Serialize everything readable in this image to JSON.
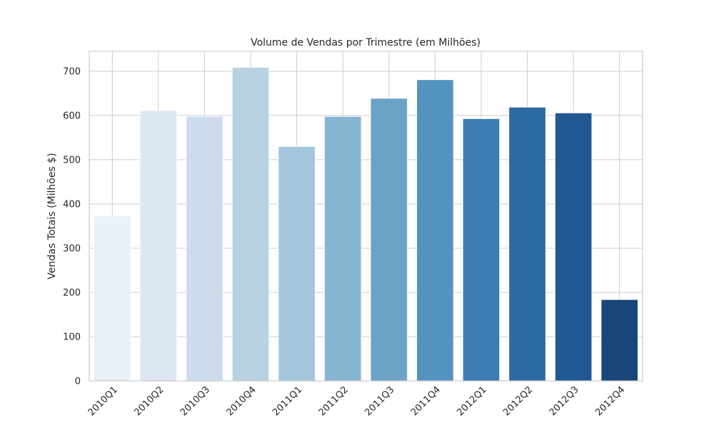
{
  "chart_data": {
    "type": "bar",
    "title": "Volume de Vendas por Trimestre (em Milhões)",
    "xlabel": "",
    "ylabel": "Vendas Totais (Milhões $)",
    "categories": [
      "2010Q1",
      "2010Q2",
      "2010Q3",
      "2010Q4",
      "2011Q1",
      "2011Q2",
      "2011Q3",
      "2011Q4",
      "2012Q1",
      "2012Q2",
      "2012Q3",
      "2012Q4"
    ],
    "values": [
      373,
      611,
      598,
      709,
      530,
      598,
      639,
      681,
      593,
      619,
      606,
      184
    ],
    "colors": [
      "#e8f0f8",
      "#dce7f2",
      "#ccdced",
      "#b8d2e3",
      "#a3c6db",
      "#86b5d2",
      "#6ba3c6",
      "#5493bf",
      "#3d7db2",
      "#2d6aa3",
      "#215892",
      "#174677"
    ],
    "ylim": [
      0,
      745
    ],
    "yticks": [
      0,
      100,
      200,
      300,
      400,
      500,
      600,
      700
    ],
    "grid": true,
    "legend": "none"
  }
}
